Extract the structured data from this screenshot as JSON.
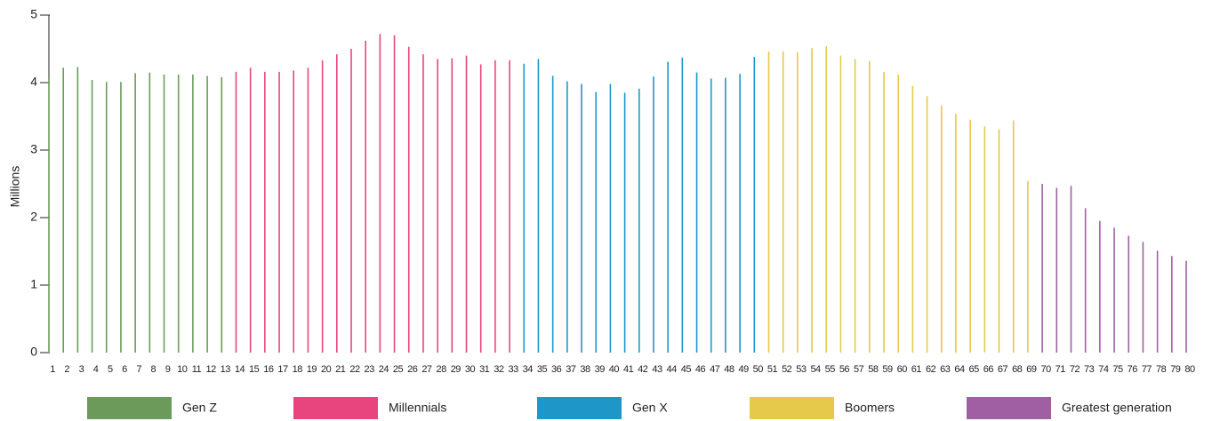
{
  "chart_data": {
    "type": "bar",
    "ylabel": "Millions",
    "categories": [
      "1",
      "2",
      "3",
      "4",
      "5",
      "6",
      "7",
      "8",
      "9",
      "10",
      "11",
      "12",
      "13",
      "14",
      "15",
      "16",
      "17",
      "18",
      "19",
      "20",
      "21",
      "22",
      "23",
      "24",
      "25",
      "26",
      "27",
      "28",
      "29",
      "30",
      "31",
      "32",
      "33",
      "34",
      "35",
      "36",
      "37",
      "38",
      "39",
      "40",
      "41",
      "42",
      "43",
      "44",
      "45",
      "46",
      "47",
      "48",
      "49",
      "50",
      "51",
      "52",
      "53",
      "54",
      "55",
      "56",
      "57",
      "58",
      "59",
      "60",
      "61",
      "62",
      "63",
      "64",
      "65",
      "66",
      "67",
      "68",
      "69",
      "70",
      "71",
      "72",
      "73",
      "74",
      "75",
      "76",
      "77",
      "78",
      "79",
      "80"
    ],
    "series": [
      {
        "name": "Gen Z",
        "color": "#6b9a5b",
        "values": [
          4.05,
          4.22,
          4.23,
          4.04,
          4.01,
          4.01,
          4.14,
          4.15,
          4.12,
          4.12,
          4.12,
          4.1,
          4.08,
          null,
          null,
          null,
          null,
          null,
          null,
          null,
          null,
          null,
          null,
          null,
          null,
          null,
          null,
          null,
          null,
          null,
          null,
          null,
          null,
          null,
          null,
          null,
          null,
          null,
          null,
          null,
          null,
          null,
          null,
          null,
          null,
          null,
          null,
          null,
          null,
          null,
          null,
          null,
          null,
          null,
          null,
          null,
          null,
          null,
          null,
          null,
          null,
          null,
          null,
          null,
          null,
          null,
          null,
          null,
          null,
          null,
          null,
          null,
          null,
          null,
          null,
          null,
          null,
          null,
          null,
          null
        ]
      },
      {
        "name": "Millennials",
        "color": "#e8457e",
        "values": [
          null,
          null,
          null,
          null,
          null,
          null,
          null,
          null,
          null,
          null,
          null,
          null,
          null,
          4.16,
          4.22,
          4.16,
          4.16,
          4.18,
          4.22,
          4.33,
          4.42,
          4.5,
          4.62,
          4.72,
          4.7,
          4.53,
          4.42,
          4.35,
          4.36,
          4.4,
          4.27,
          4.33,
          4.33,
          null,
          null,
          null,
          null,
          null,
          null,
          null,
          null,
          null,
          null,
          null,
          null,
          null,
          null,
          null,
          null,
          null,
          null,
          null,
          null,
          null,
          null,
          null,
          null,
          null,
          null,
          null,
          null,
          null,
          null,
          null,
          null,
          null,
          null,
          null,
          null,
          null,
          null,
          null,
          null,
          null,
          null,
          null,
          null,
          null,
          null,
          null
        ]
      },
      {
        "name": "Gen X",
        "color": "#1e97c8",
        "values": [
          null,
          null,
          null,
          null,
          null,
          null,
          null,
          null,
          null,
          null,
          null,
          null,
          null,
          null,
          null,
          null,
          null,
          null,
          null,
          null,
          null,
          null,
          null,
          null,
          null,
          null,
          null,
          null,
          null,
          null,
          null,
          null,
          null,
          4.28,
          4.35,
          4.1,
          4.02,
          3.98,
          3.86,
          3.98,
          3.85,
          3.91,
          4.09,
          4.31,
          4.37,
          4.15,
          4.06,
          4.07,
          4.13,
          4.38,
          null,
          null,
          null,
          null,
          null,
          null,
          null,
          null,
          null,
          null,
          null,
          null,
          null,
          null,
          null,
          null,
          null,
          null,
          null,
          null,
          null,
          null,
          null,
          null,
          null,
          null,
          null,
          null,
          null,
          null
        ]
      },
      {
        "name": "Boomers",
        "color": "#e6c84a",
        "values": [
          null,
          null,
          null,
          null,
          null,
          null,
          null,
          null,
          null,
          null,
          null,
          null,
          null,
          null,
          null,
          null,
          null,
          null,
          null,
          null,
          null,
          null,
          null,
          null,
          null,
          null,
          null,
          null,
          null,
          null,
          null,
          null,
          null,
          null,
          null,
          null,
          null,
          null,
          null,
          null,
          null,
          null,
          null,
          null,
          null,
          null,
          null,
          null,
          null,
          null,
          4.46,
          4.46,
          4.45,
          4.51,
          4.54,
          4.4,
          4.35,
          4.32,
          4.16,
          4.12,
          3.95,
          3.8,
          3.66,
          3.54,
          3.45,
          3.35,
          3.31,
          3.44,
          2.54,
          null,
          null,
          null,
          null,
          null,
          null,
          null,
          null,
          null,
          null,
          null
        ]
      },
      {
        "name": "Greatest generation",
        "color": "#a05fa3",
        "values": [
          null,
          null,
          null,
          null,
          null,
          null,
          null,
          null,
          null,
          null,
          null,
          null,
          null,
          null,
          null,
          null,
          null,
          null,
          null,
          null,
          null,
          null,
          null,
          null,
          null,
          null,
          null,
          null,
          null,
          null,
          null,
          null,
          null,
          null,
          null,
          null,
          null,
          null,
          null,
          null,
          null,
          null,
          null,
          null,
          null,
          null,
          null,
          null,
          null,
          null,
          null,
          null,
          null,
          null,
          null,
          null,
          null,
          null,
          null,
          null,
          null,
          null,
          null,
          null,
          null,
          null,
          null,
          null,
          null,
          2.5,
          2.44,
          2.47,
          2.14,
          1.95,
          1.85,
          1.73,
          1.64,
          1.51,
          1.43,
          1.36
        ]
      }
    ],
    "ylim": [
      0,
      5
    ],
    "yticks": [
      0,
      1,
      2,
      3,
      4,
      5
    ],
    "grid": false
  }
}
